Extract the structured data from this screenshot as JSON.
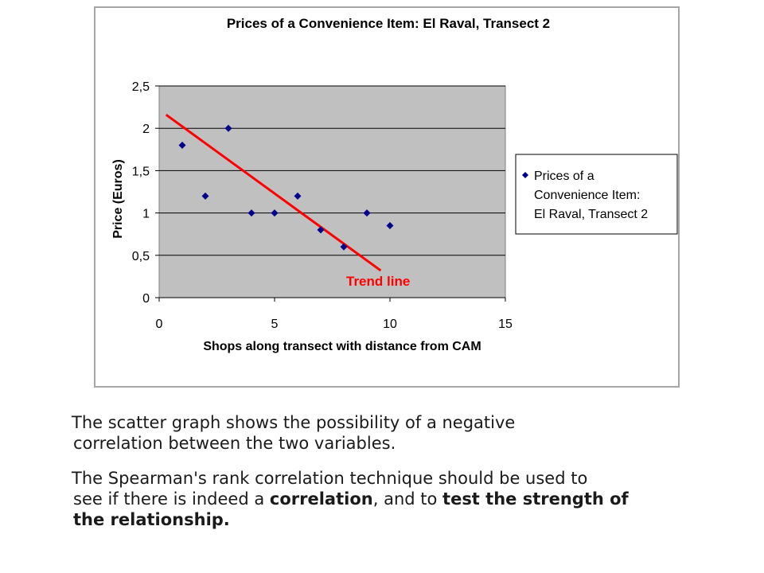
{
  "chart_data": {
    "type": "scatter",
    "title": "Prices of a Convenience Item: El Raval, Transect 2",
    "xlabel": "Shops along transect with distance from CAM",
    "ylabel": "Price (Euros)",
    "xlim": [
      0,
      15
    ],
    "ylim": [
      0,
      2.5
    ],
    "x_ticks": [
      "0",
      "5",
      "10",
      "15"
    ],
    "y_ticks": [
      "0",
      "0,5",
      "1",
      "1,5",
      "2",
      "2,5"
    ],
    "grid": true,
    "legend_position": "right",
    "series": [
      {
        "name": "Prices of a Convenience Item: El Raval, Transect 2",
        "legend_lines": [
          "Prices of a",
          "Convenience Item:",
          "El Raval, Transect 2"
        ],
        "color": "#00008b",
        "marker": "diamond",
        "x": [
          1,
          2,
          3,
          4,
          5,
          6,
          7,
          8,
          9,
          10
        ],
        "y": [
          1.8,
          1.2,
          2.0,
          1.0,
          1.0,
          1.2,
          0.8,
          0.6,
          1.0,
          0.85
        ]
      }
    ],
    "trend_line": {
      "label": "Trend line",
      "color": "#ff0000",
      "x": [
        0.3,
        9.6
      ],
      "y": [
        2.16,
        0.32
      ]
    },
    "plot_background": "#c0c0c0"
  },
  "caption": {
    "p1": {
      "line1": "The scatter graph shows the possibility of a negative",
      "line2": "correlation between the two variables."
    },
    "p2": {
      "line1": "The Spearman's rank correlation technique should be used to",
      "line2_a": "see if there is indeed a ",
      "line2_b": "correlation",
      "line2_c": ", and to ",
      "line2_d": "test the strength of",
      "line3": "the relationship."
    }
  }
}
